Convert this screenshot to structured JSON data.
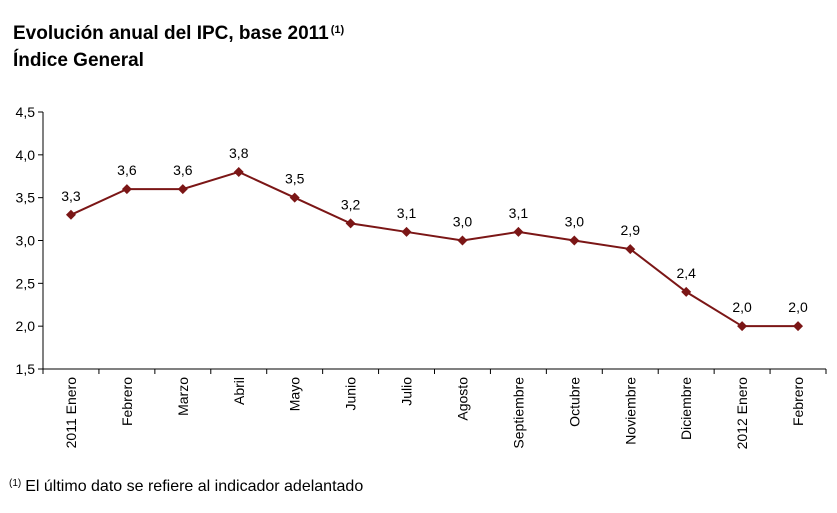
{
  "title": {
    "line1": "Evolución anual del IPC, base 2011",
    "note_ref": "(1)",
    "line2": "Índice General"
  },
  "footnote": {
    "ref": "(1)",
    "text": "El último dato se refiere al indicador adelantado"
  },
  "chart_data": {
    "type": "line",
    "title": "Evolución anual del IPC, base 2011 (1) Índice General",
    "categories": [
      "2011 Enero",
      "Febrero",
      "Marzo",
      "Abril",
      "Mayo",
      "Junio",
      "Julio",
      "Agosto",
      "Septiembre",
      "Octubre",
      "Noviembre",
      "Diciembre",
      "2012 Enero",
      "Febrero"
    ],
    "series": [
      {
        "values": [
          3.3,
          3.6,
          3.6,
          3.8,
          3.5,
          3.2,
          3.1,
          3.0,
          3.1,
          3.0,
          2.9,
          2.4,
          2.0,
          2.0
        ],
        "labels": [
          "3,3",
          "3,6",
          "3,6",
          "3,8",
          "3,5",
          "3,2",
          "3,1",
          "3,0",
          "3,1",
          "3,0",
          "2,9",
          "2,4",
          "2,0",
          "2,0"
        ],
        "color": "#7b1616"
      }
    ],
    "yticks": [
      "1,5",
      "2,0",
      "2,5",
      "3,0",
      "3,5",
      "4,0",
      "4,5"
    ],
    "ylim": [
      1.5,
      4.5
    ],
    "grid": false,
    "legend": "none",
    "xlabel": "",
    "ylabel": ""
  }
}
